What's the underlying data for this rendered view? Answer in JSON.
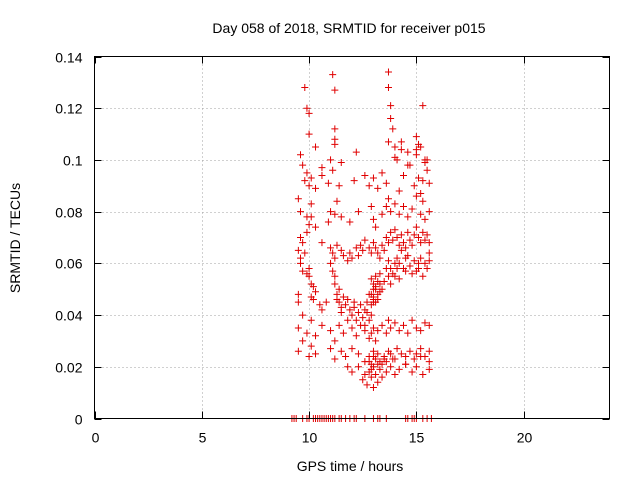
{
  "chart_data": {
    "type": "scatter",
    "title": "Day 058 of 2018, SRMTID for receiver p015",
    "xlabel": "GPS time / hours",
    "ylabel": "SRMTID / TECUs",
    "xlim": [
      0,
      24
    ],
    "ylim": [
      0,
      0.14
    ],
    "xticks": [
      0,
      5,
      10,
      15,
      20
    ],
    "xtick_labels": [
      "0",
      "5",
      "10",
      "15",
      "20"
    ],
    "yticks": [
      0,
      0.02,
      0.04,
      0.06,
      0.08,
      0.1,
      0.12,
      0.14
    ],
    "ytick_labels": [
      "0",
      "0.02",
      "0.04",
      "0.06",
      "0.08",
      "0.1",
      "0.12",
      "0.14"
    ],
    "grid": true,
    "marker": "+",
    "series": [
      {
        "name": "SRMTID",
        "color": "#e00000",
        "x": [
          9.2,
          9.3,
          9.4,
          9.7,
          9.9,
          10.0,
          10.2,
          10.3,
          10.4,
          10.5,
          10.6,
          10.7,
          10.8,
          10.9,
          11.0,
          11.1,
          11.2,
          11.4,
          11.5,
          11.7,
          11.9,
          12.1,
          12.2,
          12.6,
          13.0,
          13.2,
          13.3,
          13.6,
          14.5,
          14.6,
          14.8,
          14.9,
          15.0,
          15.3,
          15.5,
          15.7,
          9.5,
          9.5,
          9.6,
          9.6,
          9.7,
          9.8,
          9.9,
          10.0,
          10.0,
          10.1,
          10.1,
          10.2,
          10.2,
          10.3,
          10.5,
          10.6,
          10.8,
          11.0,
          11.1,
          11.2,
          11.2,
          11.3,
          11.3,
          11.4,
          11.4,
          11.5,
          11.5,
          11.6,
          11.7,
          11.8,
          11.9,
          12.0,
          12.1,
          12.1,
          12.2,
          12.3,
          12.4,
          12.5,
          12.6,
          12.6,
          12.7,
          12.7,
          12.8,
          12.8,
          12.9,
          12.9,
          13.0,
          13.0,
          13.1,
          13.1,
          13.2,
          13.3,
          13.3,
          13.4,
          13.5,
          13.6,
          13.7,
          13.7,
          13.8,
          13.8,
          13.9,
          14.0,
          14.0,
          14.1,
          14.1,
          14.2,
          14.2,
          14.3,
          14.4,
          14.5,
          14.5,
          14.6,
          14.7,
          14.8,
          14.9,
          15.0,
          15.1,
          15.1,
          15.2,
          15.3,
          15.4,
          15.5,
          15.6,
          15.6,
          9.5,
          9.6,
          9.7,
          9.9,
          10.0,
          10.1,
          10.3,
          10.6,
          11.0,
          11.1,
          11.2,
          11.3,
          11.5,
          11.6,
          11.8,
          11.9,
          12.0,
          12.2,
          12.3,
          12.4,
          12.5,
          12.6,
          12.8,
          12.9,
          13.0,
          13.1,
          13.2,
          13.3,
          13.4,
          13.5,
          13.6,
          13.7,
          13.8,
          13.9,
          14.0,
          14.1,
          14.2,
          14.3,
          14.4,
          14.5,
          14.6,
          14.7,
          14.8,
          14.9,
          15.0,
          15.1,
          15.2,
          15.3,
          15.4,
          15.5,
          15.6,
          9.5,
          9.7,
          9.9,
          10.1,
          10.3,
          10.6,
          11.0,
          11.2,
          11.4,
          11.6,
          11.8,
          12.0,
          12.2,
          12.4,
          12.6,
          12.8,
          12.9,
          13.0,
          13.1,
          13.2,
          13.4,
          13.6,
          13.7,
          13.8,
          14.0,
          14.2,
          14.4,
          14.6,
          14.8,
          15.0,
          15.2,
          15.4,
          15.6,
          9.5,
          9.6,
          9.9,
          10.1,
          10.9,
          11.0,
          11.2,
          11.3,
          11.5,
          11.9,
          12.3,
          12.9,
          13.0,
          13.1,
          13.4,
          13.6,
          13.7,
          13.8,
          14.0,
          14.2,
          14.4,
          14.6,
          14.8,
          15.0,
          15.2,
          15.3,
          15.4,
          15.6,
          9.5,
          9.7,
          10.0,
          10.1,
          10.3,
          11.0,
          11.2,
          11.5,
          11.7,
          12.0,
          12.3,
          12.6,
          12.8,
          12.9,
          13.0,
          13.1,
          13.2,
          13.3,
          13.5,
          13.7,
          13.9,
          14.1,
          14.3,
          14.5,
          14.7,
          14.9,
          15.0,
          15.2,
          15.4,
          15.6,
          11.8,
          12.0,
          12.3,
          12.6,
          12.9,
          13.4,
          13.6,
          13.8,
          14.0,
          14.2,
          14.5,
          14.8,
          15.0,
          15.3,
          15.6,
          12.5,
          12.7,
          12.8,
          12.9,
          13.0,
          13.0,
          13.1,
          13.2,
          13.3,
          13.4,
          12.8,
          13.0,
          13.2,
          13.5,
          13.6,
          13.8,
          14.0,
          14.5,
          15.2,
          15.6,
          9.8,
          9.9,
          10.0,
          10.1,
          10.3,
          10.6,
          10.9,
          11.1,
          11.4,
          12.1,
          12.6,
          12.8,
          13.0,
          13.2,
          13.4,
          13.6,
          14.4,
          14.9,
          15.1,
          15.3,
          15.5,
          15.6,
          12.9,
          13.0,
          13.1,
          13.2,
          13.3,
          12.9,
          13.0,
          13.1,
          13.2,
          13.0,
          9.8,
          9.9,
          10.0,
          11.1,
          11.2,
          11.2,
          13.7,
          13.7,
          13.8,
          14.0,
          14.1,
          14.3,
          14.6,
          15.0,
          15.1,
          15.2,
          15.3,
          15.4,
          11.2,
          13.8,
          13.9,
          14.2,
          14.6,
          15.0,
          15.4,
          9.6,
          9.7,
          10.0,
          10.3,
          10.6,
          11.0,
          11.2,
          11.5,
          12.2,
          13.7,
          14.0,
          14.3,
          14.7,
          15.0,
          15.2,
          15.5
        ],
        "y": [
          0,
          0,
          0,
          0,
          0,
          0,
          0,
          0,
          0,
          0,
          0,
          0,
          0,
          0,
          0,
          0,
          0,
          0,
          0,
          0,
          0,
          0,
          0,
          0,
          0,
          0,
          0,
          0,
          0,
          0,
          0,
          0,
          0,
          0,
          0,
          0,
          0.048,
          0.045,
          0.062,
          0.06,
          0.057,
          0.064,
          0.056,
          0.058,
          0.055,
          0.047,
          0.052,
          0.051,
          0.046,
          0.049,
          0.044,
          0.042,
          0.045,
          0.06,
          0.057,
          0.055,
          0.052,
          0.048,
          0.046,
          0.05,
          0.045,
          0.043,
          0.041,
          0.047,
          0.044,
          0.046,
          0.042,
          0.04,
          0.045,
          0.043,
          0.038,
          0.041,
          0.044,
          0.039,
          0.042,
          0.036,
          0.041,
          0.045,
          0.038,
          0.048,
          0.044,
          0.04,
          0.046,
          0.05,
          0.055,
          0.045,
          0.048,
          0.052,
          0.056,
          0.05,
          0.053,
          0.058,
          0.061,
          0.055,
          0.058,
          0.052,
          0.056,
          0.06,
          0.055,
          0.062,
          0.058,
          0.054,
          0.06,
          0.065,
          0.058,
          0.062,
          0.057,
          0.063,
          0.059,
          0.056,
          0.061,
          0.057,
          0.06,
          0.058,
          0.062,
          0.055,
          0.06,
          0.058,
          0.064,
          0.061,
          0.065,
          0.07,
          0.068,
          0.072,
          0.075,
          0.078,
          0.074,
          0.068,
          0.066,
          0.064,
          0.062,
          0.067,
          0.065,
          0.063,
          0.061,
          0.064,
          0.062,
          0.066,
          0.063,
          0.067,
          0.065,
          0.069,
          0.066,
          0.064,
          0.068,
          0.066,
          0.064,
          0.062,
          0.067,
          0.065,
          0.07,
          0.068,
          0.072,
          0.069,
          0.073,
          0.07,
          0.067,
          0.071,
          0.068,
          0.066,
          0.072,
          0.069,
          0.067,
          0.071,
          0.074,
          0.07,
          0.068,
          0.072,
          0.069,
          0.071,
          0.068,
          0.035,
          0.04,
          0.033,
          0.038,
          0.032,
          0.036,
          0.034,
          0.03,
          0.036,
          0.033,
          0.038,
          0.035,
          0.032,
          0.036,
          0.034,
          0.031,
          0.033,
          0.035,
          0.03,
          0.034,
          0.036,
          0.033,
          0.038,
          0.035,
          0.037,
          0.034,
          0.036,
          0.033,
          0.038,
          0.035,
          0.034,
          0.037,
          0.036,
          0.085,
          0.08,
          0.078,
          0.083,
          0.076,
          0.08,
          0.079,
          0.084,
          0.078,
          0.076,
          0.08,
          0.082,
          0.077,
          0.074,
          0.079,
          0.082,
          0.085,
          0.08,
          0.083,
          0.079,
          0.082,
          0.078,
          0.081,
          0.086,
          0.079,
          0.084,
          0.077,
          0.08,
          0.026,
          0.03,
          0.024,
          0.028,
          0.025,
          0.027,
          0.023,
          0.026,
          0.024,
          0.027,
          0.025,
          0.022,
          0.024,
          0.021,
          0.026,
          0.023,
          0.025,
          0.022,
          0.024,
          0.026,
          0.023,
          0.027,
          0.025,
          0.024,
          0.026,
          0.023,
          0.025,
          0.027,
          0.024,
          0.026,
          0.02,
          0.018,
          0.02,
          0.017,
          0.019,
          0.021,
          0.018,
          0.02,
          0.017,
          0.019,
          0.021,
          0.018,
          0.02,
          0.017,
          0.019,
          0.015,
          0.013,
          0.018,
          0.016,
          0.012,
          0.02,
          0.017,
          0.014,
          0.019,
          0.016,
          0.022,
          0.024,
          0.021,
          0.023,
          0.022,
          0.025,
          0.023,
          0.021,
          0.024,
          0.022,
          0.092,
          0.095,
          0.09,
          0.093,
          0.089,
          0.094,
          0.091,
          0.096,
          0.09,
          0.092,
          0.094,
          0.09,
          0.093,
          0.089,
          0.095,
          0.091,
          0.094,
          0.09,
          0.093,
          0.092,
          0.096,
          0.091,
          0.048,
          0.052,
          0.05,
          0.046,
          0.049,
          0.054,
          0.047,
          0.051,
          0.053,
          0.045,
          0.128,
          0.12,
          0.118,
          0.133,
          0.127,
          0.112,
          0.134,
          0.128,
          0.121,
          0.105,
          0.1,
          0.107,
          0.098,
          0.104,
          0.106,
          0.087,
          0.121,
          0.1,
          0.108,
          0.116,
          0.112,
          0.088,
          0.103,
          0.109,
          0.099,
          0.102,
          0.098,
          0.11,
          0.105,
          0.097,
          0.1,
          0.106,
          0.099,
          0.103,
          0.107,
          0.101,
          0.104,
          0.098,
          0.102,
          0.105,
          0.1
        ]
      }
    ]
  }
}
